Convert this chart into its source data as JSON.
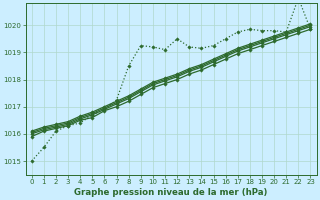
{
  "title": "Graphe pression niveau de la mer (hPa)",
  "bg_color": "#cceeff",
  "grid_color": "#b0d8cc",
  "line_color": "#2d6a2d",
  "xlim": [
    -0.5,
    23.5
  ],
  "ylim": [
    1014.5,
    1020.8
  ],
  "yticks": [
    1015,
    1016,
    1017,
    1018,
    1019,
    1020
  ],
  "xticks": [
    0,
    1,
    2,
    3,
    4,
    5,
    6,
    7,
    8,
    9,
    10,
    11,
    12,
    13,
    14,
    15,
    16,
    17,
    18,
    19,
    20,
    21,
    22,
    23
  ],
  "series": [
    {
      "y": [
        1015.0,
        1015.5,
        1016.1,
        1016.3,
        1016.4,
        1016.7,
        1016.9,
        1017.25,
        1018.5,
        1019.25,
        1019.2,
        1019.1,
        1019.5,
        1019.2,
        1019.15,
        1019.25,
        1019.5,
        1019.75,
        1019.85,
        1019.8,
        1019.8,
        1019.75,
        1021.0,
        1019.85
      ],
      "linestyle": "dotted",
      "linewidth": 0.9,
      "marker": true
    },
    {
      "y": [
        1015.9,
        1016.1,
        1016.2,
        1016.3,
        1016.5,
        1016.6,
        1016.85,
        1017.0,
        1017.2,
        1017.45,
        1017.7,
        1017.85,
        1018.0,
        1018.2,
        1018.35,
        1018.55,
        1018.75,
        1018.95,
        1019.1,
        1019.25,
        1019.4,
        1019.55,
        1019.7,
        1019.85
      ],
      "linestyle": "-",
      "linewidth": 0.9,
      "marker": true
    },
    {
      "y": [
        1016.0,
        1016.15,
        1016.25,
        1016.35,
        1016.55,
        1016.7,
        1016.9,
        1017.1,
        1017.3,
        1017.55,
        1017.8,
        1017.95,
        1018.1,
        1018.3,
        1018.45,
        1018.65,
        1018.85,
        1019.05,
        1019.2,
        1019.35,
        1019.5,
        1019.65,
        1019.8,
        1019.95
      ],
      "linestyle": "-",
      "linewidth": 0.9,
      "marker": true
    },
    {
      "y": [
        1016.05,
        1016.2,
        1016.3,
        1016.4,
        1016.6,
        1016.75,
        1016.95,
        1017.15,
        1017.35,
        1017.6,
        1017.85,
        1018.0,
        1018.15,
        1018.35,
        1018.5,
        1018.7,
        1018.9,
        1019.1,
        1019.25,
        1019.4,
        1019.55,
        1019.7,
        1019.85,
        1020.0
      ],
      "linestyle": "-",
      "linewidth": 0.9,
      "marker": true
    },
    {
      "y": [
        1016.1,
        1016.25,
        1016.35,
        1016.45,
        1016.65,
        1016.8,
        1017.0,
        1017.2,
        1017.4,
        1017.65,
        1017.9,
        1018.05,
        1018.2,
        1018.4,
        1018.55,
        1018.75,
        1018.95,
        1019.15,
        1019.3,
        1019.45,
        1019.6,
        1019.75,
        1019.9,
        1020.05
      ],
      "linestyle": "-",
      "linewidth": 0.9,
      "marker": true
    }
  ],
  "markersize": 1.8,
  "tick_labelsize": 5.0,
  "xlabel_fontsize": 6.2
}
